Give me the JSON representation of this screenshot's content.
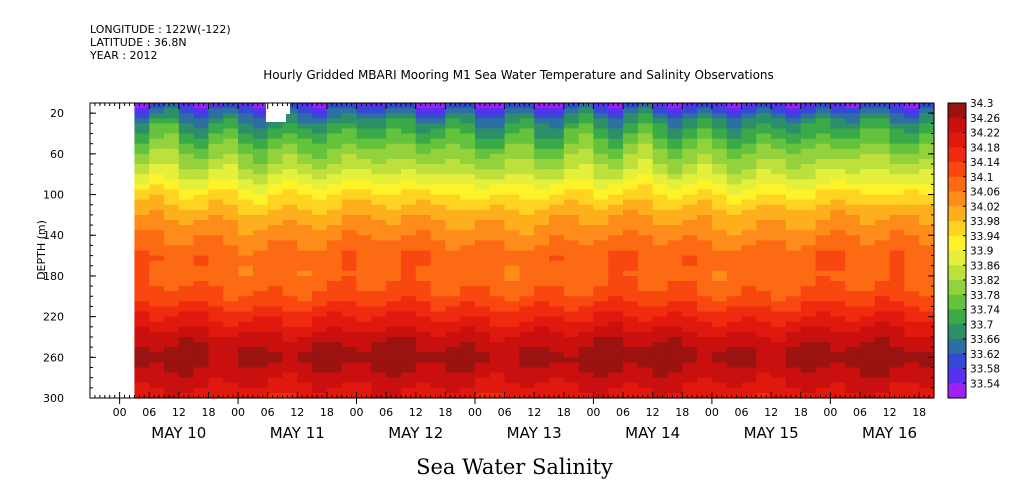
{
  "header": {
    "longitude": "LONGITUDE : 122W(-122)",
    "latitude": "LATITUDE : 36.8N",
    "year": "YEAR : 2012"
  },
  "chart_data": {
    "type": "heatmap",
    "title": "Hourly Gridded MBARI Mooring M1 Sea Water Temperature and Salinity Observations",
    "bottom_title": "Sea Water Salinity",
    "ylabel": "DEPTH (m)",
    "ylim": [
      300,
      10
    ],
    "y_ticks": [
      "20",
      "60",
      "100",
      "140",
      "180",
      "220",
      "260",
      "300"
    ],
    "y_tick_values": [
      20,
      60,
      100,
      140,
      180,
      220,
      260,
      300
    ],
    "x_start": "May 9 2012 18:00",
    "x_end": "May 16 2012 21:00",
    "x_hour_labels": [
      "00",
      "06",
      "12",
      "18",
      "00",
      "06",
      "12",
      "18",
      "00",
      "06",
      "12",
      "18",
      "00",
      "06",
      "12",
      "18",
      "00",
      "06",
      "12",
      "18",
      "00",
      "06",
      "12",
      "18",
      "00",
      "06",
      "12",
      "18",
      "00",
      "06",
      "12",
      "18"
    ],
    "x_day_labels": [
      "MAY 10",
      "MAY 11",
      "MAY 12",
      "MAY 13",
      "MAY 14",
      "MAY 15",
      "MAY 16"
    ],
    "data_start": "May 10 2012 03:00",
    "colorbar_labels": [
      "34.3",
      "34.26",
      "34.22",
      "34.18",
      "34.14",
      "34.1",
      "34.06",
      "34.02",
      "33.98",
      "33.94",
      "33.9",
      "33.86",
      "33.82",
      "33.78",
      "33.74",
      "33.7",
      "33.66",
      "33.62",
      "33.58",
      "33.54"
    ],
    "colorbar_colors": [
      "#9b1310",
      "#c9100f",
      "#e1180e",
      "#ef2a0e",
      "#f8470f",
      "#fd6a14",
      "#fe8c1a",
      "#feaf1d",
      "#fed321",
      "#fef229",
      "#e4f03c",
      "#bde03c",
      "#93d13d",
      "#64c23c",
      "#3aa948",
      "#2c8f6a",
      "#2e6fa1",
      "#3449d4",
      "#5a30f0",
      "#9c22f5"
    ],
    "profile": [
      {
        "depth": 10,
        "value": 33.58
      },
      {
        "depth": 20,
        "value": 33.66
      },
      {
        "depth": 30,
        "value": 33.72
      },
      {
        "depth": 45,
        "value": 33.77
      },
      {
        "depth": 60,
        "value": 33.82
      },
      {
        "depth": 80,
        "value": 33.88
      },
      {
        "depth": 100,
        "value": 33.96
      },
      {
        "depth": 120,
        "value": 34.02
      },
      {
        "depth": 140,
        "value": 34.06
      },
      {
        "depth": 160,
        "value": 34.1
      },
      {
        "depth": 180,
        "value": 34.09
      },
      {
        "depth": 200,
        "value": 34.12
      },
      {
        "depth": 220,
        "value": 34.18
      },
      {
        "depth": 240,
        "value": 34.24
      },
      {
        "depth": 260,
        "value": 34.28
      },
      {
        "depth": 280,
        "value": 34.24
      },
      {
        "depth": 300,
        "value": 34.2
      }
    ]
  }
}
